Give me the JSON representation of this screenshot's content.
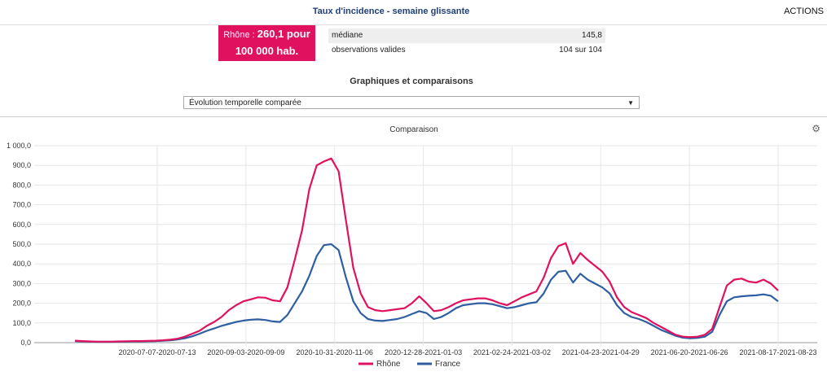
{
  "header": {
    "title": "Taux d'incidence - semaine glissante",
    "actions_label": "ACTIONS"
  },
  "badge": {
    "name": "Rhône :",
    "value": "260,1 pour",
    "unit": "100 000 hab."
  },
  "stats": [
    {
      "label": "médiane",
      "value": "145,8"
    },
    {
      "label": "observations valides",
      "value": "104 sur 104"
    }
  ],
  "section_title": "Graphiques et comparaisons",
  "select": {
    "value": "Évolution temporelle comparée"
  },
  "chart": {
    "title": "Comparaison",
    "settings_icon": "gear-icon"
  },
  "chart_data": {
    "type": "line",
    "title": "Comparaison",
    "ylim": [
      0,
      1000
    ],
    "y_ticks": [
      "0,0",
      "100,0",
      "200,0",
      "300,0",
      "400,0",
      "500,0",
      "600,0",
      "700,0",
      "800,0",
      "900,0",
      "1 000,0"
    ],
    "x_ticks": [
      "2020-07-07-2020-07-13",
      "2020-09-03-2020-09-09",
      "2020-10-31-2020-11-06",
      "2020-12-28-2021-01-03",
      "2021-02-24-2021-03-02",
      "2021-04-23-2021-04-29",
      "2021-06-20-2021-06-26",
      "2021-08-17-2021-08-23"
    ],
    "legend_position": "bottom",
    "grid": true,
    "series": [
      {
        "name": "Rhône",
        "color": "#e0115f",
        "values": [
          10,
          8,
          6,
          5,
          5,
          5,
          6,
          7,
          8,
          8,
          9,
          10,
          12,
          15,
          20,
          30,
          45,
          60,
          85,
          105,
          130,
          165,
          190,
          210,
          220,
          230,
          228,
          215,
          210,
          280,
          420,
          570,
          780,
          900,
          920,
          935,
          870,
          620,
          380,
          250,
          180,
          165,
          160,
          165,
          170,
          175,
          200,
          235,
          200,
          160,
          165,
          180,
          200,
          215,
          220,
          225,
          225,
          215,
          200,
          190,
          210,
          230,
          245,
          260,
          330,
          430,
          490,
          505,
          400,
          455,
          420,
          390,
          360,
          310,
          230,
          180,
          155,
          140,
          125,
          100,
          80,
          60,
          40,
          30,
          28,
          30,
          40,
          70,
          180,
          290,
          320,
          325,
          310,
          305,
          320,
          300,
          265
        ]
      },
      {
        "name": "France",
        "color": "#2e5fa3",
        "values": [
          8,
          6,
          5,
          4,
          4,
          4,
          5,
          5,
          6,
          6,
          7,
          8,
          10,
          12,
          16,
          22,
          32,
          45,
          60,
          72,
          85,
          95,
          105,
          112,
          116,
          118,
          115,
          108,
          105,
          140,
          200,
          260,
          340,
          440,
          495,
          500,
          470,
          330,
          210,
          150,
          120,
          112,
          110,
          115,
          120,
          130,
          145,
          160,
          150,
          120,
          130,
          150,
          175,
          190,
          195,
          200,
          200,
          195,
          185,
          175,
          180,
          190,
          200,
          205,
          250,
          320,
          360,
          365,
          305,
          350,
          320,
          300,
          280,
          250,
          190,
          150,
          130,
          120,
          105,
          85,
          65,
          50,
          35,
          25,
          22,
          24,
          30,
          55,
          140,
          210,
          230,
          235,
          238,
          240,
          245,
          238,
          210
        ]
      }
    ]
  }
}
